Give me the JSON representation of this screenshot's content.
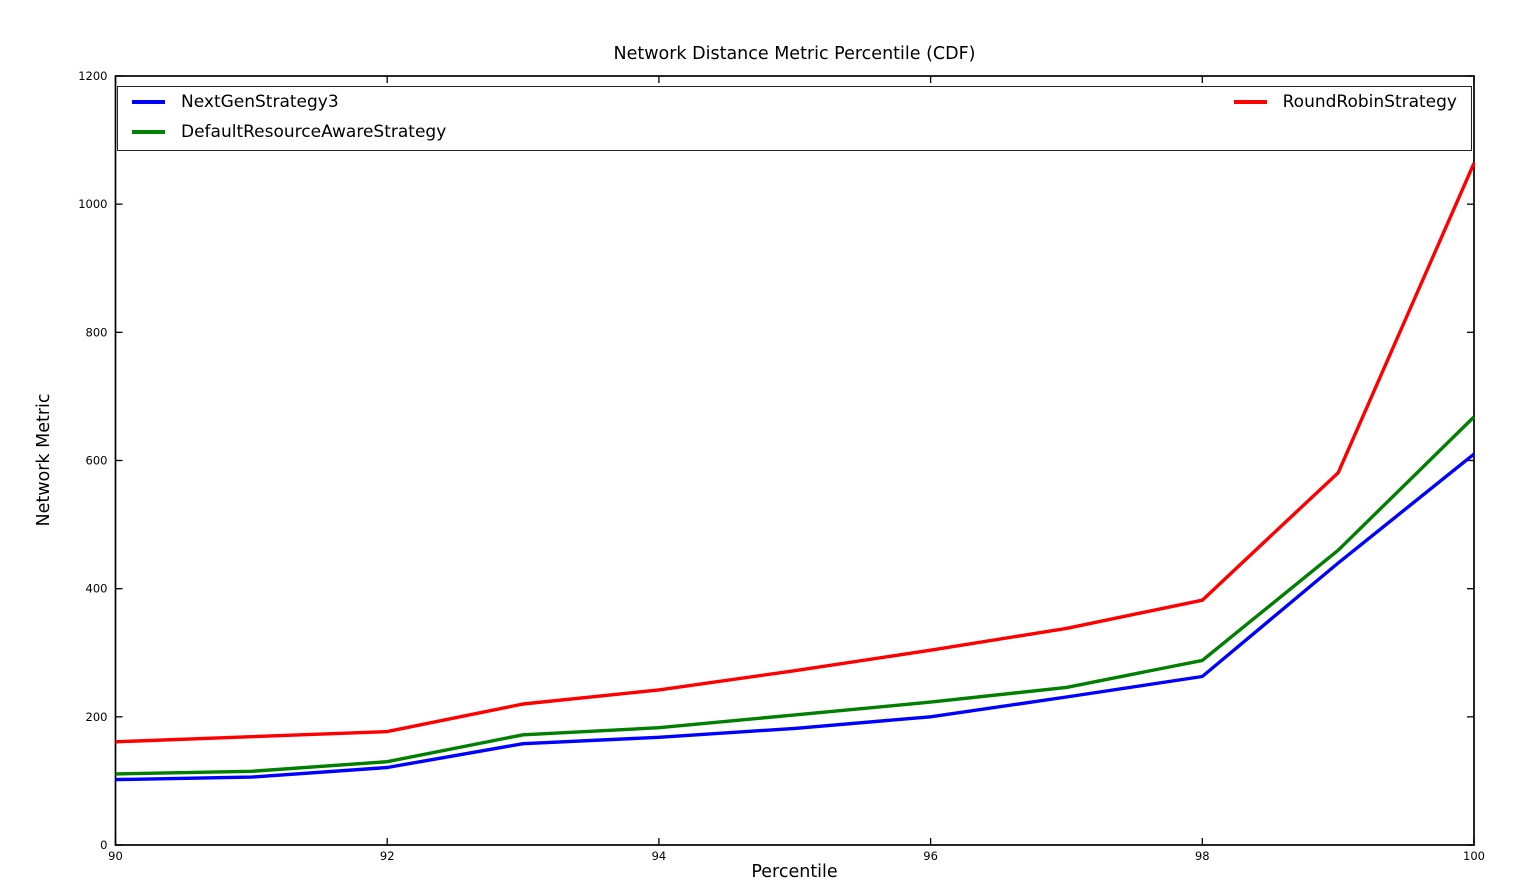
{
  "chart_data": {
    "type": "line",
    "title": "Network Distance Metric Percentile (CDF)",
    "xlabel": "Percentile",
    "ylabel": "Network Metric",
    "xlim": [
      90,
      100
    ],
    "ylim": [
      0,
      1200
    ],
    "xticks": [
      90,
      92,
      94,
      96,
      98,
      100
    ],
    "yticks": [
      0,
      200,
      400,
      600,
      800,
      1000,
      1200
    ],
    "grid": false,
    "legend_position": "full-width box at top inside plot, two columns",
    "x": [
      90,
      91,
      92,
      93,
      94,
      95,
      96,
      97,
      98,
      99,
      100
    ],
    "series": [
      {
        "name": "NextGenStrategy3",
        "color": "#0000ff",
        "values": [
          102,
          106,
          121,
          158,
          168,
          182,
          200,
          231,
          263,
          440,
          610
        ]
      },
      {
        "name": "DefaultResourceAwareStrategy",
        "color": "#008000",
        "values": [
          111,
          115,
          130,
          172,
          183,
          203,
          223,
          246,
          288,
          460,
          668
        ]
      },
      {
        "name": "RoundRobinStrategy",
        "color": "#ff0000",
        "values": [
          161,
          169,
          177,
          220,
          242,
          272,
          304,
          338,
          382,
          581,
          1064
        ]
      }
    ],
    "styles": {
      "frame_color": "#000000",
      "tick_color": "#000000",
      "line_width": 3.4,
      "tick_len": 7
    }
  }
}
